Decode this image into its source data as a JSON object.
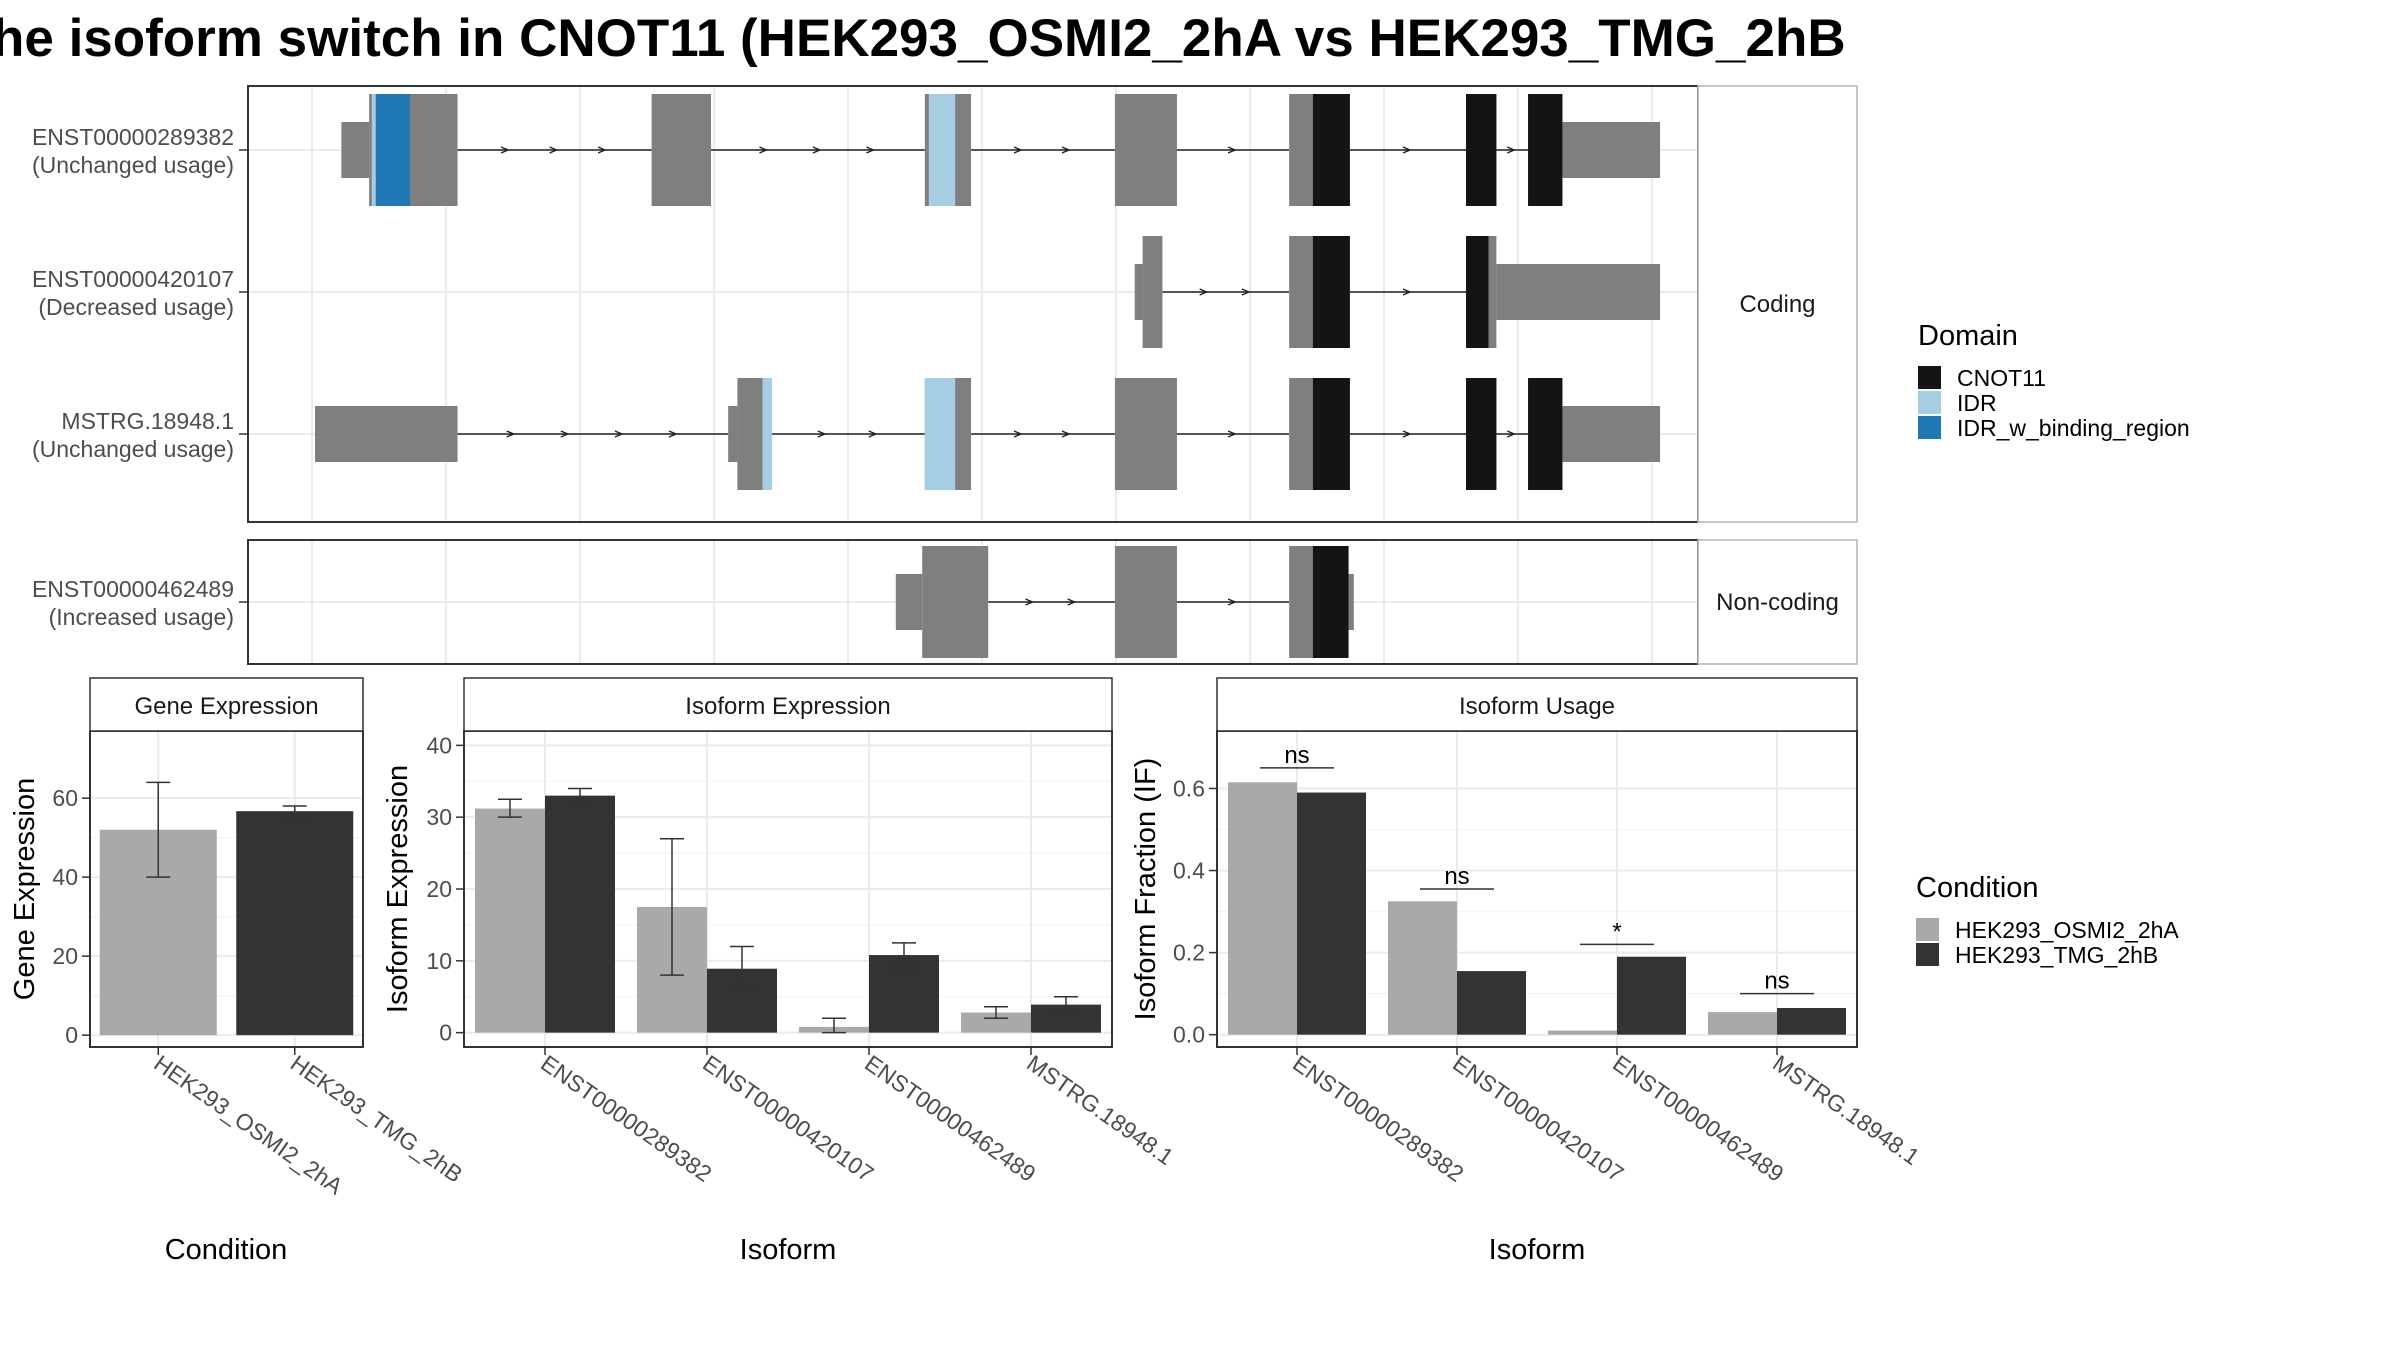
{
  "title": "he isoform switch in CNOT11 (HEK293_OSMI2_2hA vs HEK293_TMG_2hB",
  "colors": {
    "exon": "#7f7f7f",
    "CNOT11": "#141414",
    "IDR": "#a6cee3",
    "IDR_w_binding_region": "#1f78b4",
    "cond1": "#a9a9a9",
    "cond2": "#333333",
    "grid": "#ebebeb",
    "panel_border": "#333333",
    "strip_bg": "#ffffff"
  },
  "domain_legend": {
    "title": "Domain",
    "items": [
      {
        "label": "CNOT11",
        "color_key": "CNOT11"
      },
      {
        "label": "IDR",
        "color_key": "IDR"
      },
      {
        "label": "IDR_w_binding_region",
        "color_key": "IDR_w_binding_region"
      }
    ]
  },
  "condition_legend": {
    "title": "Condition",
    "items": [
      {
        "label": "HEK293_OSMI2_2hA",
        "color_key": "cond1"
      },
      {
        "label": "HEK293_TMG_2hB",
        "color_key": "cond2"
      }
    ]
  },
  "structure": {
    "xlim": [
      0,
      1000
    ],
    "facets": [
      {
        "strip": "Coding",
        "transcripts": [
          {
            "label": "ENST00000289382",
            "usage": "(Unchanged usage)",
            "exons": [
              [
                20,
                41,
                "utr"
              ],
              [
                41,
                108,
                "cds"
              ],
              [
                255,
                300,
                "cds"
              ],
              [
                462,
                497,
                "cds"
              ],
              [
                606,
                653,
                "cds"
              ],
              [
                738,
                784,
                "cds"
              ],
              [
                872,
                895,
                "cds"
              ],
              [
                919,
                945,
                "cds"
              ],
              [
                945,
                1019,
                "utr"
              ]
            ],
            "domains": [
              [
                46,
                72,
                "IDR_w_binding_region"
              ],
              [
                43,
                46,
                "IDR"
              ],
              [
                465,
                485,
                "IDR"
              ],
              [
                756,
                784,
                "CNOT11"
              ],
              [
                872,
                895,
                "CNOT11"
              ],
              [
                919,
                945,
                "CNOT11"
              ]
            ]
          },
          {
            "label": "ENST00000420107",
            "usage": "(Decreased usage)",
            "exons": [
              [
                621,
                627,
                "utr"
              ],
              [
                627,
                642,
                "cds"
              ],
              [
                738,
                784,
                "cds"
              ],
              [
                872,
                895,
                "cds"
              ],
              [
                895,
                1019,
                "utr"
              ]
            ],
            "domains": [
              [
                756,
                784,
                "CNOT11"
              ],
              [
                872,
                889,
                "CNOT11"
              ]
            ]
          },
          {
            "label": "MSTRG.18948.1",
            "usage": "(Unchanged usage)",
            "exons": [
              [
                0,
                108,
                "utr"
              ],
              [
                313,
                320,
                "utr"
              ],
              [
                320,
                346,
                "cds"
              ],
              [
                462,
                497,
                "cds"
              ],
              [
                606,
                653,
                "cds"
              ],
              [
                738,
                784,
                "cds"
              ],
              [
                872,
                895,
                "cds"
              ],
              [
                919,
                945,
                "cds"
              ],
              [
                945,
                1019,
                "utr"
              ]
            ],
            "domains": [
              [
                339,
                346,
                "IDR"
              ],
              [
                462,
                485,
                "IDR"
              ],
              [
                756,
                784,
                "CNOT11"
              ],
              [
                872,
                895,
                "CNOT11"
              ],
              [
                919,
                945,
                "CNOT11"
              ]
            ]
          }
        ]
      },
      {
        "strip": "Non-coding",
        "transcripts": [
          {
            "label": "ENST00000462489",
            "usage": "(Increased usage)",
            "exons": [
              [
                440,
                460,
                "utr"
              ],
              [
                460,
                510,
                "cds"
              ],
              [
                606,
                653,
                "cds"
              ],
              [
                738,
                760,
                "cds"
              ],
              [
                760,
                783,
                "cds"
              ],
              [
                783,
                787,
                "utr"
              ]
            ],
            "domains": [
              [
                756,
                783,
                "CNOT11"
              ]
            ]
          }
        ]
      }
    ]
  },
  "chart_data": [
    {
      "type": "bar",
      "title": "Gene Expression",
      "xlabel": "Condition",
      "ylabel": "Gene Expression",
      "ylim": [
        -3,
        77
      ],
      "yticks": [
        0,
        20,
        40,
        60
      ],
      "categories": [
        "HEK293_OSMI2_2hA",
        "HEK293_TMG_2hB"
      ],
      "series": [
        {
          "values": [
            52,
            56.7
          ],
          "lower": [
            40,
            55.5
          ],
          "upper": [
            64,
            58
          ],
          "color_keys": [
            "cond1",
            "cond2"
          ]
        }
      ]
    },
    {
      "type": "bar",
      "title": "Isoform Expression",
      "xlabel": "Isoform",
      "ylabel": "Isoform Expression",
      "ylim": [
        -2,
        42
      ],
      "yticks": [
        0,
        10,
        20,
        30,
        40
      ],
      "categories": [
        "ENST00000289382",
        "ENST00000420107",
        "ENST00000462489",
        "MSTRG.18948.1"
      ],
      "series": [
        {
          "name": "HEK293_OSMI2_2hA",
          "values": [
            31.2,
            17.5,
            0.8,
            2.8
          ],
          "lower": [
            30,
            8,
            0,
            2
          ],
          "upper": [
            32.5,
            27,
            2,
            3.6
          ]
        },
        {
          "name": "HEK293_TMG_2hB",
          "values": [
            33,
            8.9,
            10.8,
            3.9
          ],
          "lower": [
            32,
            6,
            9,
            3
          ],
          "upper": [
            34,
            12,
            12.5,
            5
          ]
        }
      ]
    },
    {
      "type": "bar",
      "title": "Isoform Usage",
      "xlabel": "Isoform",
      "ylabel": "Isoform Fraction (IF)",
      "ylim": [
        -0.03,
        0.74
      ],
      "yticks": [
        "0.0",
        "0.2",
        "0.4",
        "0.6"
      ],
      "categories": [
        "ENST00000289382",
        "ENST00000420107",
        "ENST00000462489",
        "MSTRG.18948.1"
      ],
      "series": [
        {
          "name": "HEK293_OSMI2_2hA",
          "values": [
            0.615,
            0.325,
            0.01,
            0.055
          ]
        },
        {
          "name": "HEK293_TMG_2hB",
          "values": [
            0.59,
            0.155,
            0.19,
            0.065
          ]
        }
      ],
      "significance": [
        {
          "label": "ns",
          "y": 0.65
        },
        {
          "label": "ns",
          "y": 0.355
        },
        {
          "label": "*",
          "y": 0.22
        },
        {
          "label": "ns",
          "y": 0.1
        }
      ]
    }
  ]
}
